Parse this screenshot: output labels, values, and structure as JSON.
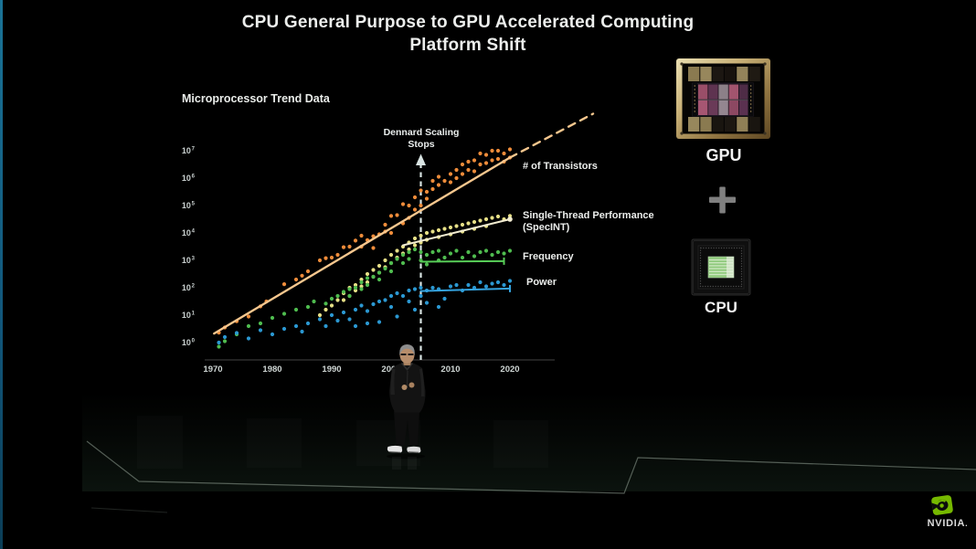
{
  "slide": {
    "title_line1": "CPU General Purpose to GPU Accelerated Computing",
    "title_line2": "Platform Shift",
    "right_panel": {
      "gpu_label": "GPU",
      "plus": "+",
      "cpu_label": "CPU"
    },
    "brand": {
      "wordmark": "NVIDIA",
      "reg_mark": "."
    }
  },
  "chart_data": {
    "type": "scatter",
    "title": "Microprocessor Trend Data",
    "x_axis": {
      "ticks": [
        1970,
        1980,
        1990,
        2000,
        2010,
        2020
      ],
      "range": [
        1968.5,
        2027.5
      ]
    },
    "y_axis": {
      "scale": "log10",
      "tick_exponents": [
        7,
        6,
        5,
        4,
        3,
        2,
        1,
        0
      ],
      "range_log10": [
        -0.65,
        7.0
      ]
    },
    "annotation": {
      "line1": "Dennard Scaling",
      "line2": "Stops",
      "x_year": 2005
    },
    "series": [
      {
        "id": "transistors",
        "label": "# of Transistors",
        "color": "#ef8c3a",
        "line_color": "#f7c78e",
        "trend_solid": [
          [
            1970.2,
            0.33
          ],
          [
            2020,
            6.75
          ]
        ],
        "trend_dashed": [
          [
            2020,
            6.75
          ],
          [
            2034,
            8.35
          ]
        ],
        "points": [
          [
            1971,
            0.36
          ],
          [
            1972,
            0.55
          ],
          [
            1974,
            0.78
          ],
          [
            1976,
            0.95
          ],
          [
            1978,
            1.32
          ],
          [
            1979,
            1.5
          ],
          [
            1982,
            2.13
          ],
          [
            1984,
            2.3
          ],
          [
            1985,
            2.44
          ],
          [
            1986,
            2.6
          ],
          [
            1988,
            3.0
          ],
          [
            1989,
            3.08
          ],
          [
            1990,
            3.1
          ],
          [
            1991,
            3.2
          ],
          [
            1992,
            3.48
          ],
          [
            1993,
            3.5
          ],
          [
            1994,
            3.72
          ],
          [
            1995,
            3.9
          ],
          [
            1995,
            3.5
          ],
          [
            1996,
            3.74
          ],
          [
            1997,
            3.88
          ],
          [
            1997,
            3.45
          ],
          [
            1998,
            3.95
          ],
          [
            1999,
            4.05
          ],
          [
            1999,
            4.3
          ],
          [
            2000,
            4.62
          ],
          [
            2000,
            4.0
          ],
          [
            2001,
            4.65
          ],
          [
            2002,
            4.35
          ],
          [
            2002,
            5.05
          ],
          [
            2003,
            5.0
          ],
          [
            2003,
            4.55
          ],
          [
            2004,
            4.85
          ],
          [
            2004,
            5.3
          ],
          [
            2005,
            5.0
          ],
          [
            2005,
            5.55
          ],
          [
            2006,
            5.5
          ],
          [
            2006,
            5.25
          ],
          [
            2007,
            5.9
          ],
          [
            2007,
            5.6
          ],
          [
            2008,
            6.05
          ],
          [
            2008,
            5.75
          ],
          [
            2009,
            5.9
          ],
          [
            2010,
            6.15
          ],
          [
            2010,
            5.85
          ],
          [
            2011,
            6.3
          ],
          [
            2011,
            6.0
          ],
          [
            2012,
            6.5
          ],
          [
            2012,
            6.15
          ],
          [
            2013,
            6.6
          ],
          [
            2013,
            6.3
          ],
          [
            2014,
            6.65
          ],
          [
            2014,
            6.25
          ],
          [
            2015,
            6.9
          ],
          [
            2015,
            6.5
          ],
          [
            2016,
            6.85
          ],
          [
            2016,
            6.55
          ],
          [
            2017,
            7.0
          ],
          [
            2017,
            6.65
          ],
          [
            2018,
            7.0
          ],
          [
            2018,
            6.7
          ],
          [
            2019,
            6.9
          ],
          [
            2019,
            6.6
          ],
          [
            2020,
            7.05
          ],
          [
            2020,
            6.75
          ]
        ]
      },
      {
        "id": "single-thread-performance",
        "label": "Single-Thread Performance",
        "label2": "(SpecINT)",
        "color": "#e6df86",
        "line_color": "#f2ecd0",
        "end_marker": "dot",
        "trend_solid": [
          [
            2002,
            3.55
          ],
          [
            2020,
            4.5
          ]
        ],
        "points": [
          [
            1988,
            1.0
          ],
          [
            1989,
            1.2
          ],
          [
            1990,
            1.35
          ],
          [
            1991,
            1.55
          ],
          [
            1992,
            1.8
          ],
          [
            1992,
            1.55
          ],
          [
            1993,
            2.0
          ],
          [
            1993,
            1.7
          ],
          [
            1994,
            2.1
          ],
          [
            1994,
            1.9
          ],
          [
            1995,
            2.3
          ],
          [
            1995,
            2.05
          ],
          [
            1996,
            2.5
          ],
          [
            1996,
            2.2
          ],
          [
            1997,
            2.65
          ],
          [
            1997,
            2.4
          ],
          [
            1998,
            2.8
          ],
          [
            1998,
            2.55
          ],
          [
            1999,
            3.0
          ],
          [
            1999,
            2.75
          ],
          [
            2000,
            3.2
          ],
          [
            2000,
            2.9
          ],
          [
            2001,
            3.35
          ],
          [
            2001,
            3.1
          ],
          [
            2002,
            3.5
          ],
          [
            2002,
            3.25
          ],
          [
            2003,
            3.65
          ],
          [
            2003,
            3.4
          ],
          [
            2004,
            3.8
          ],
          [
            2004,
            3.55
          ],
          [
            2005,
            3.9
          ],
          [
            2005,
            3.65
          ],
          [
            2006,
            4.0
          ],
          [
            2006,
            3.75
          ],
          [
            2007,
            4.05
          ],
          [
            2008,
            4.1
          ],
          [
            2008,
            3.85
          ],
          [
            2009,
            4.15
          ],
          [
            2010,
            4.2
          ],
          [
            2010,
            3.95
          ],
          [
            2011,
            4.25
          ],
          [
            2012,
            4.3
          ],
          [
            2012,
            4.05
          ],
          [
            2013,
            4.35
          ],
          [
            2014,
            4.4
          ],
          [
            2014,
            4.15
          ],
          [
            2015,
            4.45
          ],
          [
            2016,
            4.5
          ],
          [
            2016,
            4.25
          ],
          [
            2017,
            4.55
          ],
          [
            2018,
            4.6
          ],
          [
            2019,
            4.5
          ],
          [
            2020,
            4.62
          ]
        ]
      },
      {
        "id": "frequency",
        "label": "Frequency",
        "color": "#4fbc4f",
        "line_color": "#57cd57",
        "end_marker": "tick",
        "trend_solid": [
          [
            2005,
            2.95
          ],
          [
            2019,
            2.97
          ]
        ],
        "points": [
          [
            1971,
            -0.15
          ],
          [
            1972,
            0.05
          ],
          [
            1974,
            0.3
          ],
          [
            1976,
            0.6
          ],
          [
            1978,
            0.7
          ],
          [
            1980,
            0.9
          ],
          [
            1982,
            1.05
          ],
          [
            1984,
            1.2
          ],
          [
            1986,
            1.3
          ],
          [
            1987,
            1.5
          ],
          [
            1989,
            1.42
          ],
          [
            1990,
            1.6
          ],
          [
            1991,
            1.7
          ],
          [
            1992,
            1.85
          ],
          [
            1993,
            1.95
          ],
          [
            1993,
            1.7
          ],
          [
            1994,
            2.0
          ],
          [
            1995,
            2.2
          ],
          [
            1995,
            1.95
          ],
          [
            1996,
            2.35
          ],
          [
            1996,
            2.1
          ],
          [
            1997,
            2.4
          ],
          [
            1998,
            2.55
          ],
          [
            1998,
            2.3
          ],
          [
            1999,
            2.7
          ],
          [
            2000,
            2.9
          ],
          [
            2000,
            2.6
          ],
          [
            2001,
            3.05
          ],
          [
            2002,
            3.2
          ],
          [
            2002,
            2.9
          ],
          [
            2003,
            3.3
          ],
          [
            2003,
            3.05
          ],
          [
            2004,
            3.4
          ],
          [
            2005,
            3.3
          ],
          [
            2005,
            3.0
          ],
          [
            2006,
            3.2
          ],
          [
            2006,
            2.85
          ],
          [
            2007,
            3.3
          ],
          [
            2008,
            3.35
          ],
          [
            2008,
            3.0
          ],
          [
            2009,
            3.1
          ],
          [
            2010,
            3.25
          ],
          [
            2011,
            3.35
          ],
          [
            2012,
            3.1
          ],
          [
            2013,
            3.3
          ],
          [
            2014,
            3.15
          ],
          [
            2015,
            3.3
          ],
          [
            2016,
            3.35
          ],
          [
            2017,
            3.2
          ],
          [
            2018,
            3.3
          ],
          [
            2019,
            3.25
          ],
          [
            2020,
            3.35
          ]
        ]
      },
      {
        "id": "power",
        "label": "Power",
        "color": "#2b98d2",
        "line_color": "#35a4e0",
        "end_marker": "tick",
        "trend_solid": [
          [
            2005,
            1.88
          ],
          [
            2020,
            1.97
          ]
        ],
        "points": [
          [
            1971,
            0.0
          ],
          [
            1972,
            0.2
          ],
          [
            1974,
            0.35
          ],
          [
            1976,
            0.15
          ],
          [
            1978,
            0.45
          ],
          [
            1980,
            0.3
          ],
          [
            1982,
            0.5
          ],
          [
            1984,
            0.6
          ],
          [
            1985,
            0.4
          ],
          [
            1986,
            0.7
          ],
          [
            1988,
            0.85
          ],
          [
            1989,
            0.6
          ],
          [
            1990,
            1.0
          ],
          [
            1991,
            0.8
          ],
          [
            1992,
            1.1
          ],
          [
            1993,
            0.85
          ],
          [
            1994,
            1.2
          ],
          [
            1994,
            0.6
          ],
          [
            1995,
            1.35
          ],
          [
            1996,
            1.15
          ],
          [
            1996,
            0.7
          ],
          [
            1997,
            1.4
          ],
          [
            1998,
            1.5
          ],
          [
            1998,
            0.75
          ],
          [
            1999,
            1.55
          ],
          [
            2000,
            1.7
          ],
          [
            2000,
            1.3
          ],
          [
            2001,
            1.8
          ],
          [
            2001,
            0.95
          ],
          [
            2002,
            1.7
          ],
          [
            2003,
            1.9
          ],
          [
            2003,
            1.5
          ],
          [
            2004,
            1.95
          ],
          [
            2004,
            1.2
          ],
          [
            2005,
            2.0
          ],
          [
            2005,
            1.7
          ],
          [
            2006,
            1.9
          ],
          [
            2006,
            1.45
          ],
          [
            2007,
            2.0
          ],
          [
            2008,
            1.95
          ],
          [
            2008,
            1.3
          ],
          [
            2009,
            1.6
          ],
          [
            2010,
            2.05
          ],
          [
            2011,
            2.1
          ],
          [
            2012,
            1.9
          ],
          [
            2013,
            2.1
          ],
          [
            2014,
            2.0
          ],
          [
            2015,
            2.2
          ],
          [
            2016,
            2.05
          ],
          [
            2017,
            2.15
          ],
          [
            2018,
            2.2
          ],
          [
            2019,
            2.1
          ],
          [
            2020,
            2.25
          ]
        ]
      }
    ]
  }
}
